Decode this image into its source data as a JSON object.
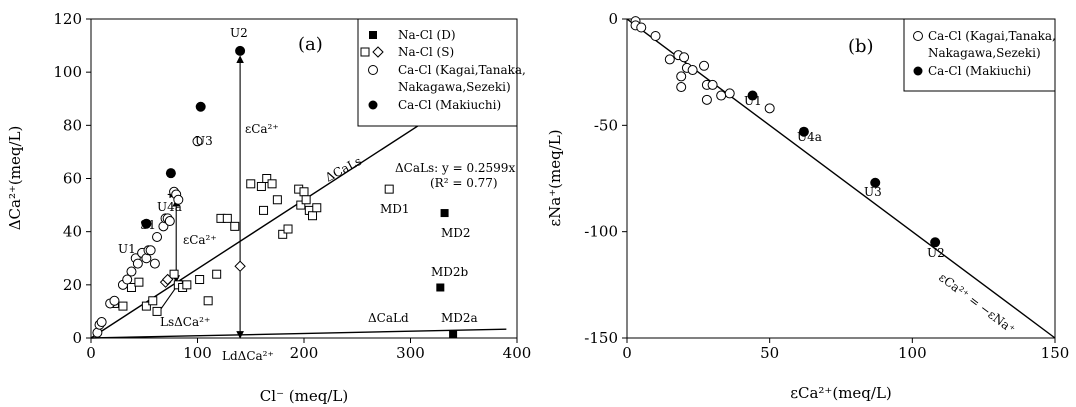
{
  "chart_data": [
    {
      "type": "scatter",
      "panel_label": "(a)",
      "xlabel": "Cl⁻ (meq/L)",
      "ylabel": "ΔCa²⁺(meq/L)",
      "xlim": [
        0,
        400
      ],
      "ylim": [
        0,
        120
      ],
      "x_ticks": [
        0,
        100,
        200,
        300,
        400
      ],
      "y_ticks": [
        0,
        20,
        40,
        60,
        80,
        100,
        120
      ],
      "x_tick_labels": [
        "0",
        "100",
        "200",
        "300",
        "400"
      ],
      "y_tick_labels": [
        "0",
        "20",
        "40",
        "60",
        "80",
        "100",
        "120"
      ],
      "grid": false,
      "legend_position": "top-right",
      "legend": [
        {
          "label": "Na-Cl (D)",
          "marker": "filled-square"
        },
        {
          "label": "Na-Cl (S)",
          "marker": "open-square-diamond"
        },
        {
          "label": "Ca-Cl (Kagai,Tanaka,",
          "marker": "open-circle"
        },
        {
          "label": "Nakagawa,Sezeki)",
          "marker": "none"
        },
        {
          "label": "Ca-Cl (Makiuchi)",
          "marker": "filled-circle"
        }
      ],
      "series": [
        {
          "name": "Na-Cl (D)",
          "marker": "filled-square",
          "points": [
            [
              332,
              47
            ],
            [
              328,
              19
            ],
            [
              340,
              1.5
            ]
          ]
        },
        {
          "name": "Na-Cl (S)",
          "marker": "open-square",
          "points": [
            [
              22,
              13
            ],
            [
              30,
              12
            ],
            [
              38,
              19
            ],
            [
              45,
              21
            ],
            [
              52,
              12
            ],
            [
              58,
              14
            ],
            [
              62,
              10
            ],
            [
              78,
              24
            ],
            [
              82,
              20
            ],
            [
              86,
              19
            ],
            [
              90,
              20
            ],
            [
              102,
              22
            ],
            [
              110,
              14
            ],
            [
              118,
              24
            ],
            [
              122,
              45
            ],
            [
              128,
              45
            ],
            [
              135,
              42
            ],
            [
              150,
              58
            ],
            [
              160,
              57
            ],
            [
              162,
              48
            ],
            [
              165,
              60
            ],
            [
              170,
              58
            ],
            [
              175,
              52
            ],
            [
              180,
              39
            ],
            [
              185,
              41
            ],
            [
              195,
              56
            ],
            [
              197,
              50
            ],
            [
              200,
              55
            ],
            [
              202,
              52
            ],
            [
              205,
              48
            ],
            [
              208,
              46
            ],
            [
              212,
              49
            ],
            [
              280,
              56
            ]
          ]
        },
        {
          "name": "Na-Cl (S) diamond",
          "marker": "open-diamond",
          "points": [
            [
              70,
              21
            ],
            [
              72,
              22
            ],
            [
              140,
              27
            ]
          ]
        },
        {
          "name": "Ca-Cl (Kagai,Tanaka,Nakagawa,Sezeki)",
          "marker": "open-circle",
          "points": [
            [
              6,
              2
            ],
            [
              8,
              5
            ],
            [
              10,
              6
            ],
            [
              18,
              13
            ],
            [
              22,
              14
            ],
            [
              30,
              20
            ],
            [
              34,
              22
            ],
            [
              38,
              25
            ],
            [
              42,
              30
            ],
            [
              44,
              28
            ],
            [
              48,
              32
            ],
            [
              52,
              30
            ],
            [
              54,
              33
            ],
            [
              56,
              33
            ],
            [
              60,
              28
            ],
            [
              62,
              38
            ],
            [
              68,
              42
            ],
            [
              70,
              45
            ],
            [
              72,
              45
            ],
            [
              74,
              44
            ],
            [
              78,
              55
            ],
            [
              80,
              54
            ],
            [
              82,
              52
            ],
            [
              100,
              74
            ]
          ]
        },
        {
          "name": "Ca-Cl (Makiuchi)",
          "marker": "filled-circle",
          "points": [
            [
              52,
              43
            ],
            [
              75,
              62
            ],
            [
              103,
              87
            ],
            [
              140,
              108
            ]
          ]
        }
      ],
      "lines": [
        {
          "name": "ΔCaLs",
          "slope": 0.2599,
          "x_range": [
            0,
            390
          ]
        },
        {
          "name": "ΔCaLd",
          "slope": 0.0085,
          "x_range": [
            0,
            390
          ]
        }
      ],
      "equation": "ΔCaLs: y = 0.2599x",
      "r2": "(R² = 0.77)",
      "line_labels": {
        "ls": "ΔCaLs",
        "ld": "ΔCaLd"
      },
      "point_labels": [
        "U1",
        "U4a",
        "S1",
        "U3",
        "U2",
        "MD1",
        "MD2",
        "MD2b",
        "MD2a"
      ],
      "arrow_labels": {
        "eps_u2": "εCa²⁺",
        "eps_s1": "εCa²⁺",
        "ls_delta": "LsΔCa²⁺",
        "ld_delta": "LdΔCa²⁺"
      }
    },
    {
      "type": "scatter",
      "panel_label": "(b)",
      "xlabel": "εCa²⁺(meq/L)",
      "ylabel": "εNa⁺(meq/L)",
      "xlim": [
        0,
        150
      ],
      "ylim": [
        -150,
        0
      ],
      "x_ticks": [
        0,
        50,
        100,
        150
      ],
      "y_ticks": [
        0,
        -50,
        -100,
        -150
      ],
      "x_tick_labels": [
        "0",
        "50",
        "100",
        "150"
      ],
      "y_tick_labels": [
        "0",
        "-50",
        "-100",
        "-150"
      ],
      "grid": false,
      "legend_position": "top-right",
      "legend": [
        {
          "label": "Ca-Cl (Kagai,Tanaka,",
          "marker": "open-circle"
        },
        {
          "label": "Nakagawa,Sezeki)",
          "marker": "none"
        },
        {
          "label": "Ca-Cl (Makiuchi)",
          "marker": "filled-circle"
        }
      ],
      "series": [
        {
          "name": "Ca-Cl (Kagai,Tanaka,Nakagawa,Sezeki)",
          "marker": "open-circle",
          "points": [
            [
              3,
              -1
            ],
            [
              3,
              -3
            ],
            [
              5,
              -4
            ],
            [
              10,
              -8
            ],
            [
              15,
              -19
            ],
            [
              18,
              -17
            ],
            [
              19,
              -27
            ],
            [
              19,
              -32
            ],
            [
              20,
              -18
            ],
            [
              21,
              -23
            ],
            [
              23,
              -24
            ],
            [
              27,
              -22
            ],
            [
              28,
              -31
            ],
            [
              28,
              -38
            ],
            [
              30,
              -31
            ],
            [
              33,
              -36
            ],
            [
              36,
              -35
            ],
            [
              50,
              -42
            ]
          ]
        },
        {
          "name": "Ca-Cl (Makiuchi)",
          "marker": "filled-circle",
          "points": [
            [
              44,
              -36
            ],
            [
              62,
              -53
            ],
            [
              87,
              -77
            ],
            [
              108,
              -105
            ]
          ]
        }
      ],
      "lines": [
        {
          "name": "1:1 line",
          "slope": -1,
          "x_range": [
            0,
            150
          ]
        }
      ],
      "line_label": "εCa²⁺ = −εNa⁺",
      "point_labels": [
        "U1",
        "U4a",
        "U3",
        "U2"
      ]
    }
  ]
}
